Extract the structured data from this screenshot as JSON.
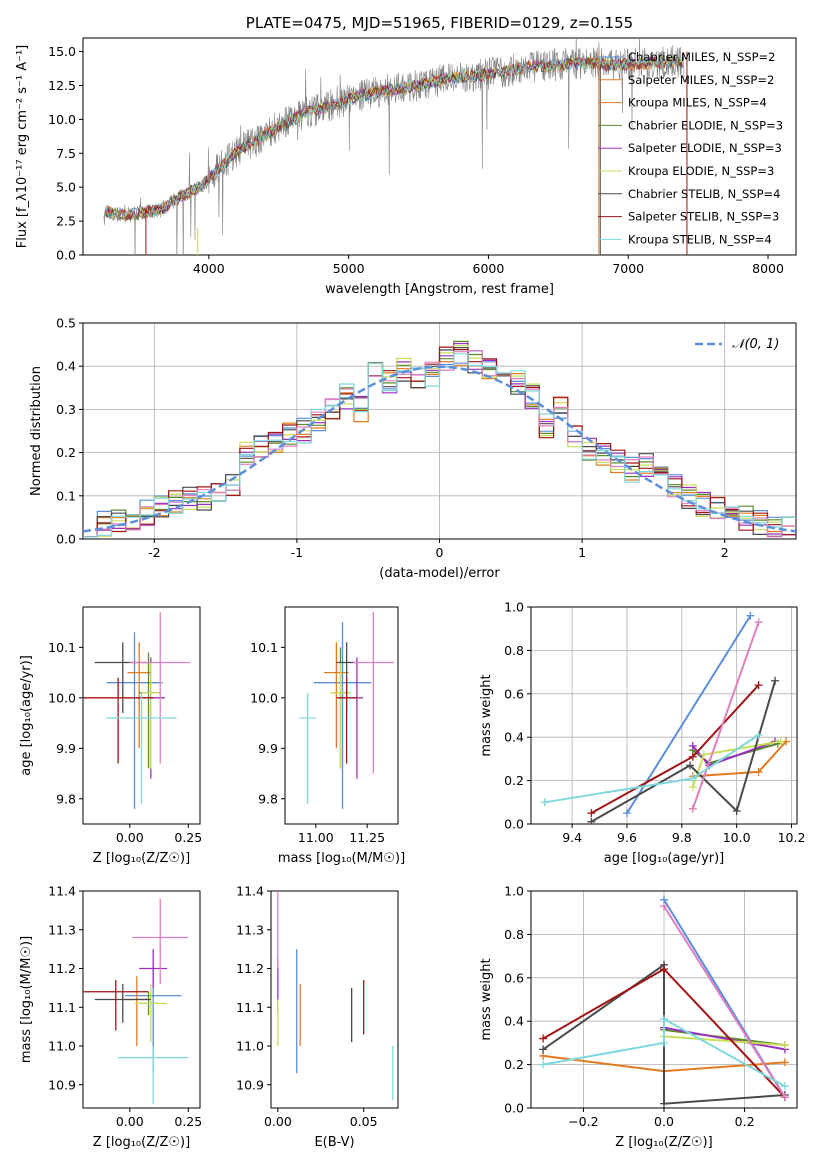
{
  "colors": {
    "blue": "#5b8fd9",
    "orange": "#e07b1f",
    "green": "#5a8a2a",
    "purple": "#9b30c0",
    "lime": "#c9dd5a",
    "dark": "#4a4a4a",
    "red": "#a01515",
    "pink": "#e07fbf",
    "cyan": "#7fd8dd",
    "gray": "#808080",
    "grid": "#b0b0b0",
    "gauss": "#5b8fd9"
  },
  "chart_data": [
    {
      "id": "spectrum",
      "type": "line",
      "title": "PLATE=0475, MJD=51965, FIBERID=0129, z=0.155",
      "xlabel": "wavelength [Angstrom, rest frame]",
      "ylabel": "Flux [f_λ10⁻¹⁷ erg cm⁻² s⁻¹ A⁻¹]",
      "xlim": [
        3100,
        8200
      ],
      "ylim": [
        0,
        16
      ],
      "xticks": [
        4000,
        5000,
        6000,
        7000,
        8000
      ],
      "yticks": [
        "0.0",
        "2.5",
        "5.0",
        "7.5",
        "10.0",
        "12.5",
        "15.0"
      ],
      "continuum": [
        [
          3250,
          3.2
        ],
        [
          3400,
          2.9
        ],
        [
          3500,
          3.1
        ],
        [
          3650,
          3.3
        ],
        [
          3800,
          4.3
        ],
        [
          3950,
          5.1
        ],
        [
          4050,
          6.2
        ],
        [
          4200,
          7.6
        ],
        [
          4350,
          8.5
        ],
        [
          4500,
          9.5
        ],
        [
          4700,
          10.5
        ],
        [
          4900,
          11.1
        ],
        [
          5100,
          11.8
        ],
        [
          5300,
          12.2
        ],
        [
          5500,
          12.5
        ],
        [
          5700,
          13.0
        ],
        [
          5900,
          13.2
        ],
        [
          6100,
          13.5
        ],
        [
          6300,
          13.9
        ],
        [
          6500,
          14.0
        ],
        [
          6700,
          14.2
        ],
        [
          6900,
          14.0
        ],
        [
          7100,
          14.1
        ],
        [
          7300,
          14.3
        ],
        [
          7400,
          14.2
        ]
      ],
      "legend": [
        "Chabrier MILES, N_SSP=2",
        "Salpeter MILES, N_SSP=2",
        "Kroupa MILES, N_SSP=4",
        "Chabrier ELODIE, N_SSP=3",
        "Salpeter ELODIE, N_SSP=3",
        "Kroupa ELODIE, N_SSP=3",
        "Chabrier STELIB, N_SSP=4",
        "Salpeter STELIB, N_SSP=3",
        "Kroupa STELIB, N_SSP=4"
      ],
      "legend_colors": [
        "blue",
        "orange",
        "orange",
        "green",
        "purple",
        "lime",
        "dark",
        "red",
        "cyan"
      ],
      "legend_position": "upper right"
    },
    {
      "id": "residuals",
      "type": "step",
      "xlabel": "(data-model)/error",
      "ylabel": "Normed distribution",
      "xlim": [
        -2.5,
        2.5
      ],
      "ylim": [
        0,
        0.5
      ],
      "xticks": [
        -2,
        -1,
        0,
        1,
        2
      ],
      "yticks": [
        "0.0",
        "0.1",
        "0.2",
        "0.3",
        "0.4",
        "0.5"
      ],
      "bin_edges": [
        -2.5,
        -2.4,
        -2.3,
        -2.2,
        -2.1,
        -2.0,
        -1.9,
        -1.8,
        -1.7,
        -1.6,
        -1.5,
        -1.4,
        -1.3,
        -1.2,
        -1.1,
        -1.0,
        -0.9,
        -0.8,
        -0.7,
        -0.6,
        -0.5,
        -0.4,
        -0.3,
        -0.2,
        -0.1,
        0.0,
        0.1,
        0.2,
        0.3,
        0.4,
        0.5,
        0.6,
        0.7,
        0.8,
        0.9,
        1.0,
        1.1,
        1.2,
        1.3,
        1.4,
        1.5,
        1.6,
        1.7,
        1.8,
        1.9,
        2.0,
        2.1,
        2.2,
        2.3,
        2.4,
        2.5
      ],
      "hist_base": [
        0.03,
        0.035,
        0.045,
        0.05,
        0.06,
        0.08,
        0.085,
        0.09,
        0.095,
        0.1,
        0.13,
        0.2,
        0.21,
        0.23,
        0.24,
        0.25,
        0.28,
        0.3,
        0.33,
        0.3,
        0.38,
        0.36,
        0.39,
        0.37,
        0.38,
        0.42,
        0.43,
        0.41,
        0.4,
        0.38,
        0.36,
        0.33,
        0.26,
        0.3,
        0.24,
        0.21,
        0.2,
        0.18,
        0.16,
        0.17,
        0.14,
        0.12,
        0.1,
        0.08,
        0.07,
        0.06,
        0.05,
        0.04,
        0.03,
        0.025
      ],
      "series_colors": [
        "blue",
        "orange",
        "green",
        "purple",
        "lime",
        "dark",
        "red",
        "pink",
        "cyan"
      ],
      "gauss_label": "𝒩(0, 1)",
      "legend_position": "upper right"
    },
    {
      "id": "age_vs_Z",
      "type": "scatter",
      "xlabel": "Z [log₁₀(Z/Z☉)]",
      "ylabel": "age  [log₁₀(age/yr)]",
      "xlim": [
        -0.2,
        0.3
      ],
      "ylim": [
        9.75,
        10.18
      ],
      "xticks": [
        "0.00",
        "0.25"
      ],
      "yticks": [
        "9.8",
        "9.9",
        "10.0",
        "10.1"
      ],
      "points": [
        {
          "c": "blue",
          "x": 0.02,
          "y": 10.03,
          "xe": 0.12,
          "ye": [
            0.25,
            0.1
          ]
        },
        {
          "c": "orange",
          "x": 0.04,
          "y": 10.05,
          "xe": 0.05,
          "ye": [
            0.15,
            0.06
          ]
        },
        {
          "c": "green",
          "x": 0.08,
          "y": 10.01,
          "xe": 0.04,
          "ye": [
            0.15,
            0.08
          ]
        },
        {
          "c": "purple",
          "x": 0.09,
          "y": 10.0,
          "xe": 0.06,
          "ye": [
            0.16,
            0.08
          ]
        },
        {
          "c": "lime",
          "x": 0.09,
          "y": 10.01,
          "xe": 0.04,
          "ye": [
            0.15,
            0.06
          ]
        },
        {
          "c": "dark",
          "x": -0.03,
          "y": 10.07,
          "xe": 0.12,
          "ye": [
            0.1,
            0.04
          ]
        },
        {
          "c": "red",
          "x": -0.05,
          "y": 10.0,
          "xe": 0.15,
          "ye": [
            0.13,
            0.04
          ]
        },
        {
          "c": "pink",
          "x": 0.13,
          "y": 10.07,
          "xe": 0.13,
          "ye": [
            0.2,
            0.1
          ]
        },
        {
          "c": "cyan",
          "x": 0.05,
          "y": 9.96,
          "xe": 0.15,
          "ye": [
            0.17,
            0.05
          ]
        }
      ]
    },
    {
      "id": "age_vs_mass",
      "type": "scatter",
      "xlabel": "mass [log₁₀(M/M☉)]",
      "ylabel": "",
      "xlim": [
        10.85,
        11.4
      ],
      "ylim": [
        9.75,
        10.18
      ],
      "xticks": [
        "11.00",
        "11.25"
      ],
      "yticks": [
        "9.8",
        "9.9",
        "10.0",
        "10.1"
      ],
      "points": [
        {
          "c": "blue",
          "x": 11.13,
          "y": 10.03,
          "xe": 0.14,
          "ye": [
            0.25,
            0.12
          ]
        },
        {
          "c": "orange",
          "x": 11.1,
          "y": 10.05,
          "xe": 0.06,
          "ye": [
            0.15,
            0.06
          ]
        },
        {
          "c": "green",
          "x": 11.12,
          "y": 10.01,
          "xe": 0.04,
          "ye": [
            0.15,
            0.09
          ]
        },
        {
          "c": "purple",
          "x": 11.2,
          "y": 10.0,
          "xe": 0.03,
          "ye": [
            0.16,
            0.08
          ]
        },
        {
          "c": "lime",
          "x": 11.12,
          "y": 10.01,
          "xe": 0.05,
          "ye": [
            0.15,
            0.06
          ]
        },
        {
          "c": "dark",
          "x": 11.15,
          "y": 10.07,
          "xe": 0.05,
          "ye": [
            0.1,
            0.04
          ]
        },
        {
          "c": "red",
          "x": 11.15,
          "y": 10.0,
          "xe": 0.05,
          "ye": [
            0.13,
            0.04
          ]
        },
        {
          "c": "pink",
          "x": 11.28,
          "y": 10.07,
          "xe": 0.1,
          "ye": [
            0.22,
            0.1
          ]
        },
        {
          "c": "cyan",
          "x": 10.96,
          "y": 9.96,
          "xe": 0.04,
          "ye": [
            0.17,
            0.05
          ]
        }
      ]
    },
    {
      "id": "weight_vs_age",
      "type": "line",
      "xlabel": "age  [log₁₀(age/yr)]",
      "ylabel": "mass weight",
      "xlim": [
        9.25,
        10.22
      ],
      "ylim": [
        0,
        1
      ],
      "xticks": [
        "9.4",
        "9.6",
        "9.8",
        "10.0",
        "10.2"
      ],
      "yticks": [
        "0.0",
        "0.2",
        "0.4",
        "0.6",
        "0.8",
        "1.0"
      ],
      "series": [
        {
          "c": "blue",
          "pts": [
            [
              9.6,
              0.05
            ],
            [
              10.05,
              0.96
            ]
          ]
        },
        {
          "c": "orange",
          "pts": [
            [
              9.84,
              0.22
            ],
            [
              10.08,
              0.24
            ],
            [
              10.18,
              0.38
            ]
          ]
        },
        {
          "c": "green",
          "pts": [
            [
              9.84,
              0.34
            ],
            [
              9.9,
              0.28
            ],
            [
              10.15,
              0.37
            ]
          ]
        },
        {
          "c": "purple",
          "pts": [
            [
              9.84,
              0.36
            ],
            [
              9.9,
              0.27
            ],
            [
              10.14,
              0.38
            ]
          ]
        },
        {
          "c": "lime",
          "pts": [
            [
              9.84,
              0.17
            ],
            [
              9.88,
              0.32
            ],
            [
              10.16,
              0.38
            ]
          ]
        },
        {
          "c": "dark",
          "pts": [
            [
              9.47,
              0.01
            ],
            [
              9.83,
              0.27
            ],
            [
              10.0,
              0.06
            ],
            [
              10.14,
              0.66
            ]
          ]
        },
        {
          "c": "red",
          "pts": [
            [
              9.47,
              0.05
            ],
            [
              9.84,
              0.31
            ],
            [
              10.08,
              0.64
            ]
          ]
        },
        {
          "c": "pink",
          "pts": [
            [
              9.84,
              0.07
            ],
            [
              10.08,
              0.93
            ]
          ]
        },
        {
          "c": "cyan",
          "pts": [
            [
              9.3,
              0.1
            ],
            [
              9.84,
              0.21
            ],
            [
              10.08,
              0.41
            ]
          ]
        }
      ]
    },
    {
      "id": "mass_vs_Z",
      "type": "scatter",
      "xlabel": "Z [log₁₀(Z/Z☉)]",
      "ylabel": "mass [log₁₀(M/M☉)]",
      "xlim": [
        -0.2,
        0.3
      ],
      "ylim": [
        10.84,
        11.4
      ],
      "xticks": [
        "0.00",
        "0.25"
      ],
      "yticks": [
        "10.9",
        "11.0",
        "11.1",
        "11.2",
        "11.3",
        "11.4"
      ],
      "points": [
        {
          "c": "blue",
          "x": 0.1,
          "y": 11.13,
          "xe": 0.12,
          "ye": [
            0.2,
            0.08
          ]
        },
        {
          "c": "orange",
          "x": 0.03,
          "y": 11.12,
          "xe": 0.05,
          "ye": [
            0.12,
            0.06
          ]
        },
        {
          "c": "green",
          "x": 0.08,
          "y": 11.11,
          "xe": 0.04,
          "ye": [
            0.03,
            0.03
          ]
        },
        {
          "c": "purple",
          "x": 0.1,
          "y": 11.2,
          "xe": 0.06,
          "ye": [
            0.05,
            0.05
          ]
        },
        {
          "c": "lime",
          "x": 0.09,
          "y": 11.11,
          "xe": 0.07,
          "ye": [
            0.1,
            0.05
          ]
        },
        {
          "c": "dark",
          "x": -0.03,
          "y": 11.12,
          "xe": 0.12,
          "ye": [
            0.06,
            0.04
          ]
        },
        {
          "c": "red",
          "x": -0.06,
          "y": 11.14,
          "xe": 0.14,
          "ye": [
            0.1,
            0.03
          ]
        },
        {
          "c": "pink",
          "x": 0.13,
          "y": 11.28,
          "xe": 0.12,
          "ye": [
            0.12,
            0.1
          ]
        },
        {
          "c": "cyan",
          "x": 0.1,
          "y": 10.97,
          "xe": 0.15,
          "ye": [
            0.12,
            0.03
          ]
        }
      ]
    },
    {
      "id": "mass_vs_ebv",
      "type": "scatter",
      "xlabel": "E(B-V)",
      "ylabel": "",
      "xlim": [
        -0.004,
        0.07
      ],
      "ylim": [
        10.84,
        11.4
      ],
      "xticks": [
        "0.00",
        "0.05"
      ],
      "yticks": [
        "10.9",
        "11.0",
        "11.1",
        "11.2",
        "11.3",
        "11.4"
      ],
      "points": [
        {
          "c": "blue",
          "x": 0.011,
          "y": 11.1,
          "xe": 0,
          "ye": [
            0.17,
            0.15
          ]
        },
        {
          "c": "orange",
          "x": 0.013,
          "y": 11.08,
          "xe": 0,
          "ye": [
            0.08,
            0.08
          ]
        },
        {
          "c": "purple",
          "x": 0.0,
          "y": 11.17,
          "xe": 0,
          "ye": [
            0.08,
            0.06
          ]
        },
        {
          "c": "lime",
          "x": 0.0,
          "y": 11.06,
          "xe": 0,
          "ye": [
            0.06,
            0.06
          ]
        },
        {
          "c": "pink",
          "x": 0.0,
          "y": 11.3,
          "xe": 0,
          "ye": [
            0.1,
            0.1
          ]
        },
        {
          "c": "dark",
          "x": 0.043,
          "y": 11.08,
          "xe": 0,
          "ye": [
            0.07,
            0.07
          ]
        },
        {
          "c": "red",
          "x": 0.05,
          "y": 11.1,
          "xe": 0,
          "ye": [
            0.07,
            0.07
          ]
        },
        {
          "c": "cyan",
          "x": 0.067,
          "y": 10.93,
          "xe": 0,
          "ye": [
            0.07,
            0.07
          ]
        }
      ]
    },
    {
      "id": "weight_vs_Z",
      "type": "line",
      "xlabel": "Z [log₁₀(Z/Z☉)]",
      "ylabel": "mass weight",
      "xlim": [
        -0.33,
        0.33
      ],
      "ylim": [
        0,
        1
      ],
      "xticks": [
        "−0.2",
        "0.0",
        "0.2"
      ],
      "yticks": [
        "0.0",
        "0.2",
        "0.4",
        "0.6",
        "0.8",
        "1.0"
      ],
      "series": [
        {
          "c": "blue",
          "pts": [
            [
              0.0,
              0.96
            ],
            [
              0.3,
              0.05
            ]
          ]
        },
        {
          "c": "orange",
          "pts": [
            [
              -0.3,
              0.24
            ],
            [
              0.0,
              0.17
            ],
            [
              0.3,
              0.21
            ]
          ]
        },
        {
          "c": "green",
          "pts": [
            [
              0.0,
              0.36
            ],
            [
              0.3,
              0.29
            ]
          ]
        },
        {
          "c": "purple",
          "pts": [
            [
              0.0,
              0.37
            ],
            [
              0.3,
              0.27
            ]
          ]
        },
        {
          "c": "lime",
          "pts": [
            [
              0.0,
              0.33
            ],
            [
              0.3,
              0.29
            ]
          ]
        },
        {
          "c": "dark",
          "pts": [
            [
              -0.3,
              0.27
            ],
            [
              0.0,
              0.66
            ],
            [
              0.0,
              0.02
            ],
            [
              0.3,
              0.06
            ]
          ]
        },
        {
          "c": "red",
          "pts": [
            [
              -0.3,
              0.32
            ],
            [
              0.0,
              0.64
            ],
            [
              0.3,
              0.05
            ]
          ]
        },
        {
          "c": "pink",
          "pts": [
            [
              0.0,
              0.93
            ],
            [
              0.3,
              0.05
            ]
          ]
        },
        {
          "c": "cyan",
          "pts": [
            [
              -0.3,
              0.2
            ],
            [
              0.0,
              0.3
            ],
            [
              0.0,
              0.41
            ],
            [
              0.3,
              0.1
            ]
          ]
        }
      ]
    }
  ]
}
